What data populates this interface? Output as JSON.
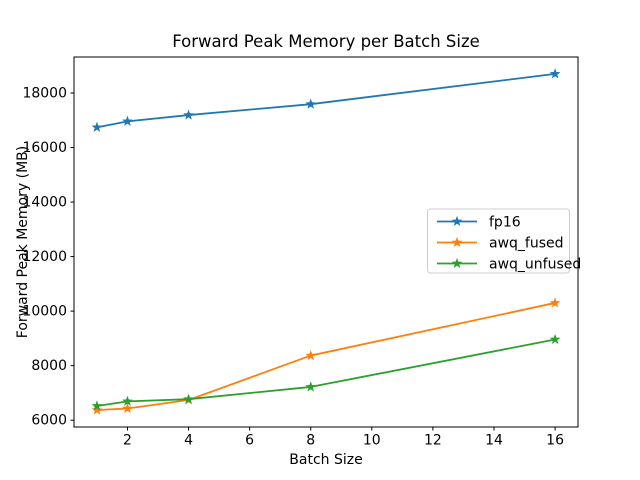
{
  "window": {
    "background": "#ffffff"
  },
  "chart_data": {
    "type": "line",
    "title": "Forward Peak Memory per Batch Size",
    "xlabel": "Batch Size",
    "ylabel": "Forward Peak Memory (MB)",
    "x": [
      1,
      2,
      4,
      8,
      16
    ],
    "series": [
      {
        "name": "fp16",
        "color": "#1f77b4",
        "values": [
          16740,
          16960,
          17190,
          17590,
          18700
        ]
      },
      {
        "name": "awq_fused",
        "color": "#ff7f0e",
        "values": [
          6370,
          6430,
          6740,
          8370,
          10300
        ]
      },
      {
        "name": "awq_unfused",
        "color": "#2ca02c",
        "values": [
          6520,
          6690,
          6770,
          7220,
          8960
        ]
      }
    ],
    "xticks": [
      2,
      4,
      6,
      8,
      10,
      12,
      14,
      16
    ],
    "yticks": [
      6000,
      8000,
      10000,
      12000,
      14000,
      16000,
      18000
    ],
    "xlim": [
      0.25,
      16.75
    ],
    "ylim": [
      5750,
      19320
    ],
    "marker": "star",
    "line_width": 1.8,
    "grid": false,
    "legend_position": "center right",
    "axis_color": "#000000",
    "legend_border_color": "#cccccc"
  }
}
